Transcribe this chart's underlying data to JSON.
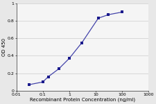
{
  "x": [
    0.031,
    0.1,
    0.16,
    0.4,
    1.0,
    3.0,
    12.5,
    30.0,
    100.0
  ],
  "y": [
    0.07,
    0.1,
    0.16,
    0.25,
    0.37,
    0.55,
    0.83,
    0.87,
    0.9
  ],
  "line_color": "#4444aa",
  "marker_color": "#1a1a8c",
  "marker_size": 3.0,
  "xlabel": "Recombinant Protein Concentration (ng/ml)",
  "ylabel": "OD 450",
  "xlim": [
    0.01,
    1000
  ],
  "ylim": [
    0,
    1.0
  ],
  "yticks": [
    0,
    0.2,
    0.4,
    0.6,
    0.8,
    1
  ],
  "ytick_labels": [
    "0",
    "0.2",
    "0.4",
    "0.6",
    "0.8",
    "1"
  ],
  "xtick_values": [
    0.01,
    0.1,
    1,
    10,
    100,
    1000
  ],
  "xtick_labels": [
    "0.01",
    "0.1",
    "1",
    "10",
    "100",
    "1000"
  ],
  "bg_color": "#e8e8e8",
  "plot_bg_color": "#f5f5f5",
  "grid_color": "#cccccc",
  "axis_fontsize": 5.0,
  "tick_fontsize": 4.5,
  "linewidth": 0.9
}
